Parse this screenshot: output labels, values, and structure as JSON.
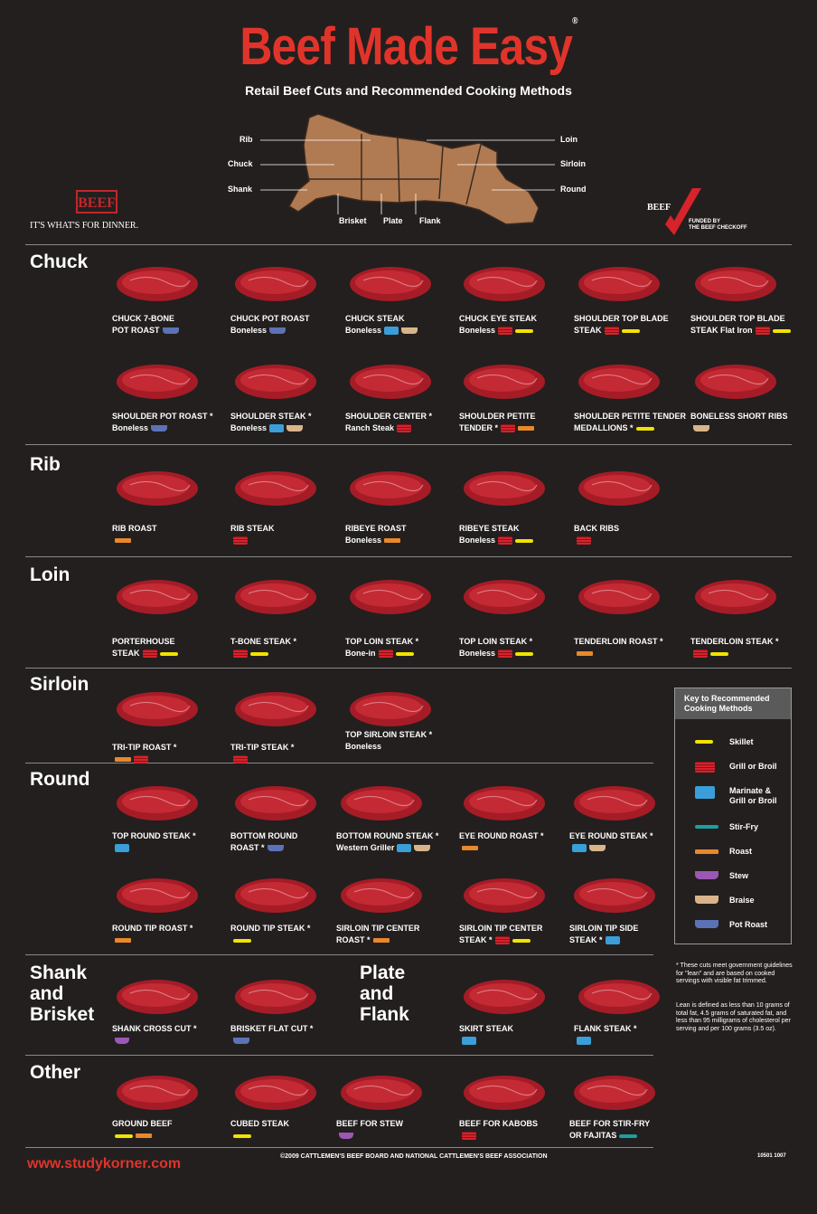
{
  "header": {
    "title": "Beef Made Easy",
    "reg": "®",
    "subtitle": "Retail Beef Cuts and Recommended Cooking Methods"
  },
  "brand": {
    "logo_text": "BEEF",
    "tagline": "IT'S WHAT'S FOR DINNER.",
    "checkoff_logo": "BEEF",
    "checkoff_text_1": "FUNDED BY",
    "checkoff_text_2": "THE BEEF CHECKOFF"
  },
  "diagram": {
    "labels": {
      "rib": "Rib",
      "chuck": "Chuck",
      "shank": "Shank",
      "brisket": "Brisket",
      "plate": "Plate",
      "flank": "Flank",
      "loin": "Loin",
      "sirloin": "Sirloin",
      "round": "Round"
    }
  },
  "sections": {
    "chuck": "Chuck",
    "rib": "Rib",
    "loin": "Loin",
    "sirloin": "Sirloin",
    "round": "Round",
    "shank": "Shank and Brisket",
    "shank_l1": "Shank",
    "shank_l2": "and",
    "shank_l3": "Brisket",
    "plate_l1": "Plate",
    "plate_l2": "and",
    "plate_l3": "Flank",
    "other": "Other"
  },
  "cuts": {
    "c1": {
      "l1": "CHUCK 7-BONE",
      "l2": "POT ROAST"
    },
    "c2": {
      "l1": "CHUCK POT ROAST",
      "l2": "Boneless"
    },
    "c3": {
      "l1": "CHUCK STEAK",
      "l2": "Boneless"
    },
    "c4": {
      "l1": "CHUCK EYE STEAK",
      "l2": "Boneless"
    },
    "c5": {
      "l1": "SHOULDER TOP BLADE",
      "l2": "STEAK"
    },
    "c6": {
      "l1": "SHOULDER TOP BLADE",
      "l2": "STEAK  Flat Iron"
    },
    "c7": {
      "l1": "SHOULDER POT ROAST *",
      "l2": "Boneless"
    },
    "c8": {
      "l1": "SHOULDER STEAK *",
      "l2": "Boneless"
    },
    "c9": {
      "l1": "SHOULDER CENTER *",
      "l2": "Ranch Steak"
    },
    "c10": {
      "l1": "SHOULDER PETITE",
      "l2": "TENDER *"
    },
    "c11": {
      "l1": "SHOULDER PETITE TENDER",
      "l2": "MEDALLIONS *"
    },
    "c12": {
      "l1": "BONELESS SHORT RIBS",
      "l2": ""
    },
    "r1": {
      "l1": "RIB ROAST",
      "l2": ""
    },
    "r2": {
      "l1": "RIB STEAK",
      "l2": ""
    },
    "r3": {
      "l1": "RIBEYE ROAST",
      "l2": "Boneless"
    },
    "r4": {
      "l1": "RIBEYE STEAK",
      "l2": "Boneless"
    },
    "r5": {
      "l1": "BACK RIBS",
      "l2": ""
    },
    "l1": {
      "l1": "PORTERHOUSE",
      "l2": "STEAK"
    },
    "l2": {
      "l1": "T-BONE STEAK *",
      "l2": ""
    },
    "l3": {
      "l1": "TOP LOIN STEAK *",
      "l2": "Bone-in"
    },
    "l4": {
      "l1": "TOP LOIN STEAK *",
      "l2": "Boneless"
    },
    "l5": {
      "l1": "TENDERLOIN ROAST *",
      "l2": ""
    },
    "l6": {
      "l1": "TENDERLOIN STEAK *",
      "l2": ""
    },
    "s1": {
      "l1": "TRI-TIP ROAST *",
      "l2": ""
    },
    "s2": {
      "l1": "TRI-TIP STEAK *",
      "l2": ""
    },
    "s3": {
      "l1": "TOP SIRLOIN STEAK *",
      "l2": "Boneless"
    },
    "o1": {
      "l1": "TOP ROUND STEAK *",
      "l2": ""
    },
    "o2": {
      "l1": "BOTTOM ROUND",
      "l2": "ROAST *"
    },
    "o3": {
      "l1": "BOTTOM ROUND STEAK *",
      "l2": "Western Griller"
    },
    "o4": {
      "l1": "EYE ROUND ROAST *",
      "l2": ""
    },
    "o5": {
      "l1": "EYE ROUND STEAK *",
      "l2": ""
    },
    "o6": {
      "l1": "ROUND TIP ROAST *",
      "l2": ""
    },
    "o7": {
      "l1": "ROUND TIP STEAK *",
      "l2": ""
    },
    "o8": {
      "l1": "SIRLOIN TIP CENTER",
      "l2": "ROAST *"
    },
    "o9": {
      "l1": "SIRLOIN TIP CENTER",
      "l2": "STEAK *"
    },
    "o10": {
      "l1": "SIRLOIN TIP SIDE",
      "l2": "STEAK *"
    },
    "b1": {
      "l1": "SHANK CROSS CUT *",
      "l2": ""
    },
    "b2": {
      "l1": "BRISKET FLAT CUT *",
      "l2": ""
    },
    "p1": {
      "l1": "SKIRT STEAK",
      "l2": ""
    },
    "p2": {
      "l1": "FLANK STEAK  *",
      "l2": ""
    },
    "x1": {
      "l1": "GROUND BEEF",
      "l2": ""
    },
    "x2": {
      "l1": "CUBED STEAK",
      "l2": ""
    },
    "x3": {
      "l1": "BEEF FOR STEW",
      "l2": ""
    },
    "x4": {
      "l1": "BEEF FOR KABOBS",
      "l2": ""
    },
    "x5": {
      "l1": "BEEF FOR STIR-FRY",
      "l2": "OR FAJITAS"
    }
  },
  "key": {
    "title_1": "Key to Recommended",
    "title_2": "Cooking Methods",
    "skillet": "Skillet",
    "grill": "Grill or Broil",
    "marinate_1": "Marinate &",
    "marinate_2": "Grill or Broil",
    "stirfry": "Stir-Fry",
    "roast": "Roast",
    "stew": "Stew",
    "braise": "Braise",
    "potroast": "Pot Roast"
  },
  "footnote": {
    "p1": "* These cuts meet government guidelines for \"lean\" and are based on cooked servings with visible fat trimmed.",
    "p2": "Lean is defined as less than 10 grams of total fat, 4.5 grams of saturated fat, and less than 95 milligrams of cholesterol per serving and per 100 grams (3.5 oz)."
  },
  "footer": {
    "copyright": "©2009 CATTLEMEN'S BEEF BOARD AND NATIONAL CATTLEMEN'S BEEF ASSOCIATION",
    "code": "10501  1007",
    "url": "www.studykorner.com"
  },
  "colors": {
    "background": "#231f1e",
    "title_red": "#e0342b",
    "meat": "#b3202b"
  }
}
